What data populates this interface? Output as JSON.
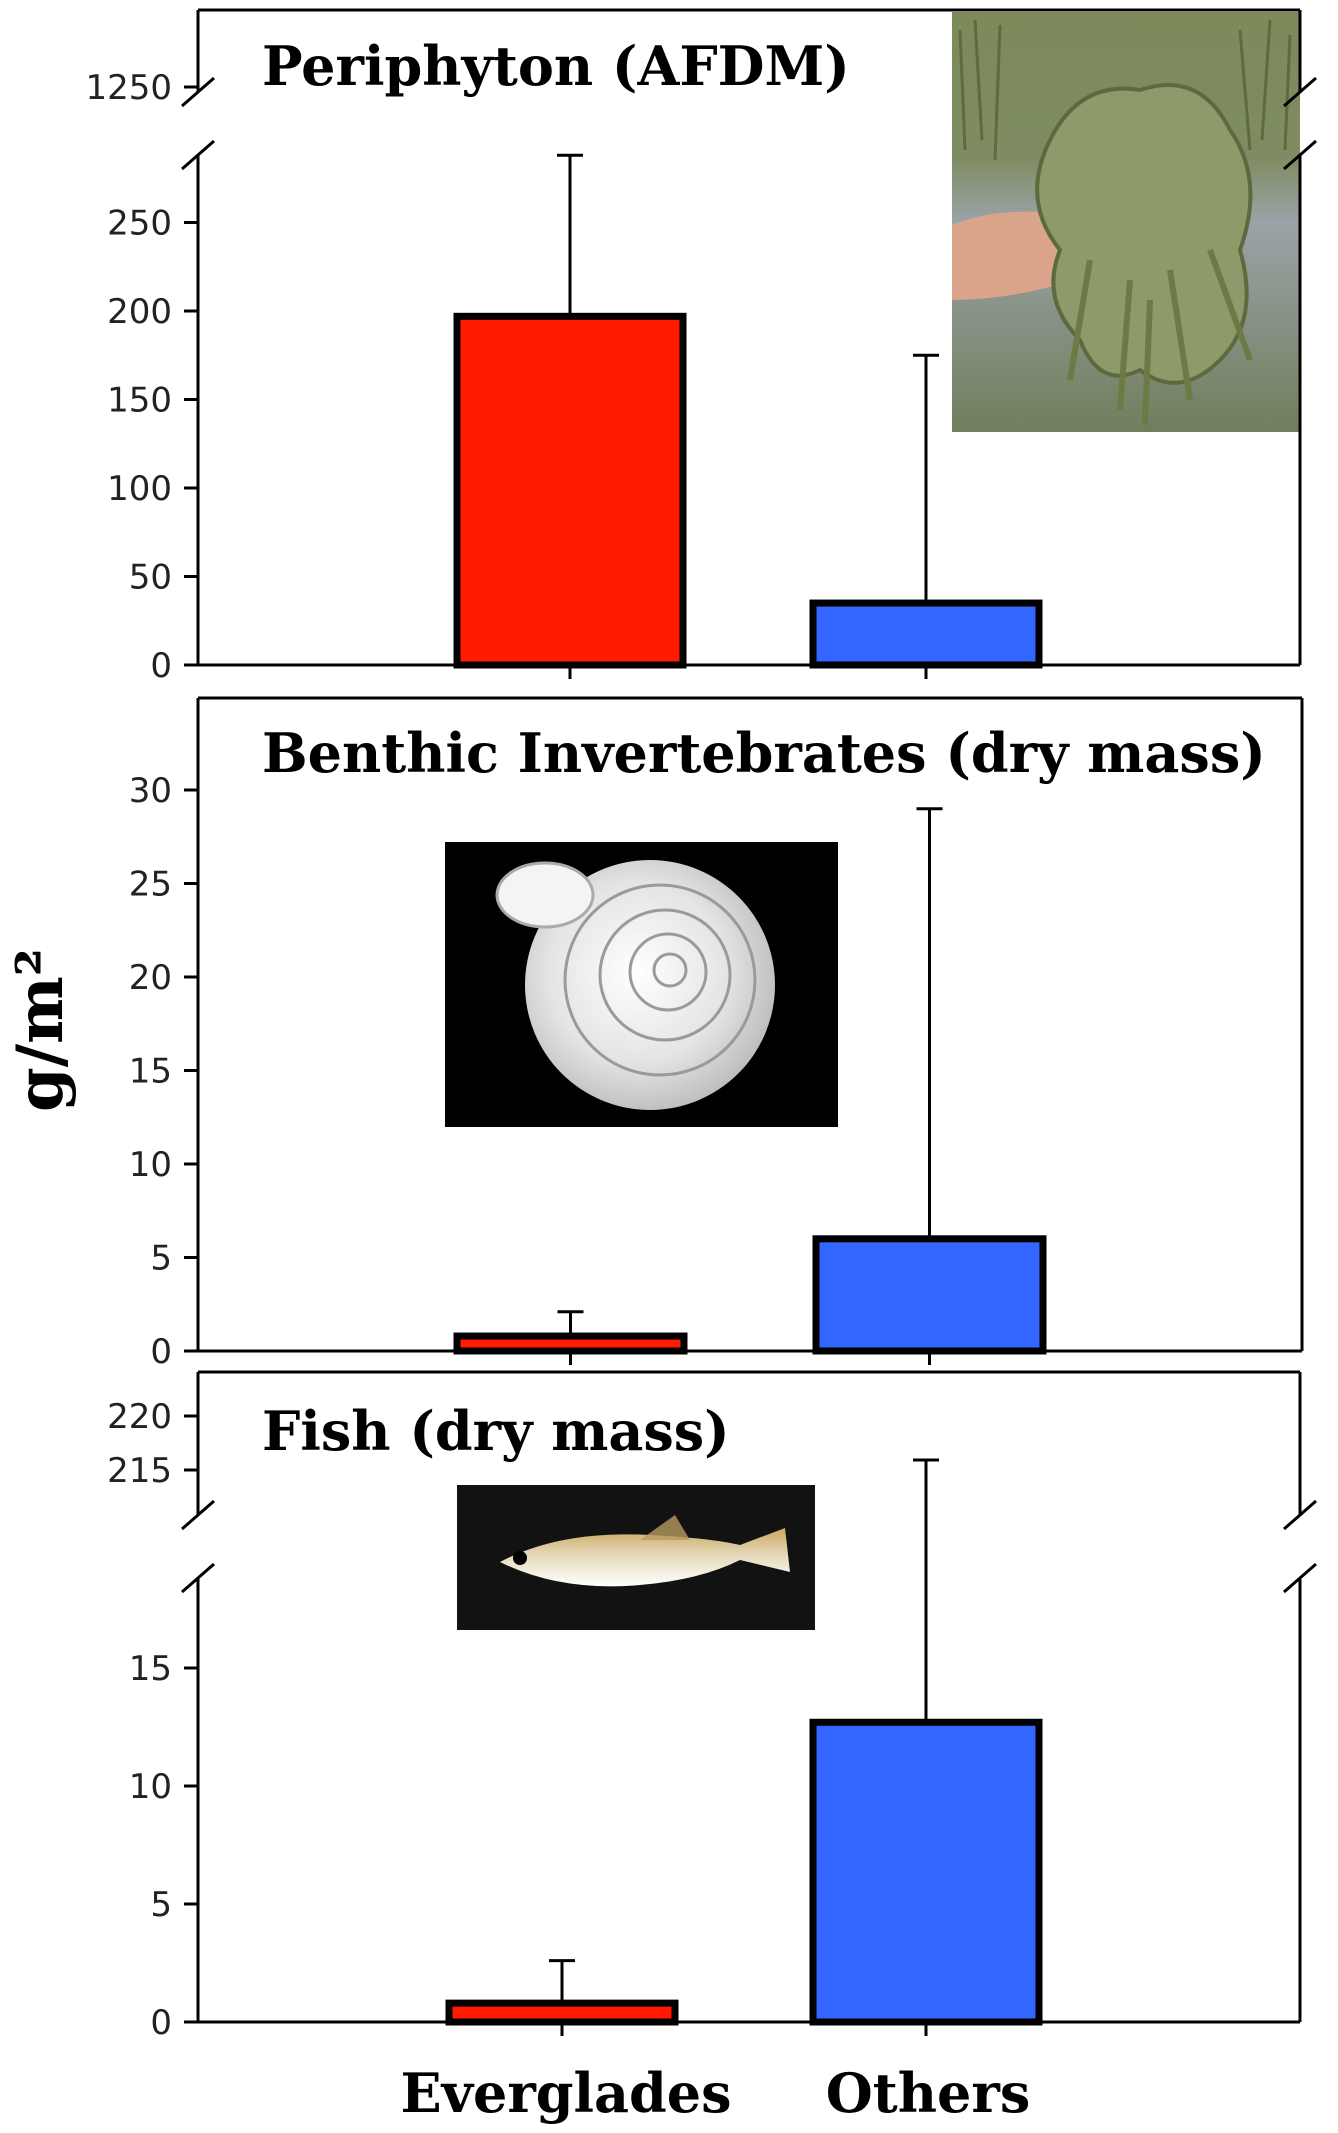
{
  "y_axis_label": "g/m²",
  "categories": [
    "Everglades",
    "Others"
  ],
  "colors": {
    "Everglades": "#ff1a00",
    "Others": "#3366ff"
  },
  "chart_data": [
    {
      "type": "bar",
      "title": "Periphyton (AFDM)",
      "categories": [
        "Everglades",
        "Others"
      ],
      "values": [
        197,
        35
      ],
      "error_upper": [
        288,
        175
      ],
      "y_ticks": [
        0,
        50,
        100,
        150,
        200,
        250
      ],
      "y_break_ticks": [
        1250
      ],
      "ylim": [
        0,
        280
      ],
      "axis_break": true,
      "inset_photo": "periphyton-mat"
    },
    {
      "type": "bar",
      "title": "Benthic Invertebrates (dry mass)",
      "categories": [
        "Everglades",
        "Others"
      ],
      "values": [
        0.8,
        6
      ],
      "error_upper": [
        2.1,
        29
      ],
      "y_ticks": [
        0,
        5,
        10,
        15,
        20,
        25,
        30
      ],
      "y_break_ticks": [],
      "ylim": [
        0,
        30
      ],
      "axis_break": false,
      "inset_photo": "snail-shell"
    },
    {
      "type": "bar",
      "title": "Fish (dry mass)",
      "categories": [
        "Everglades",
        "Others"
      ],
      "values": [
        0.8,
        12.7
      ],
      "error_upper": [
        2.6,
        215.5
      ],
      "y_ticks": [
        0,
        5,
        10,
        15
      ],
      "y_break_ticks": [
        215,
        220
      ],
      "ylim": [
        0,
        19
      ],
      "axis_break": true,
      "inset_photo": "fish"
    }
  ]
}
